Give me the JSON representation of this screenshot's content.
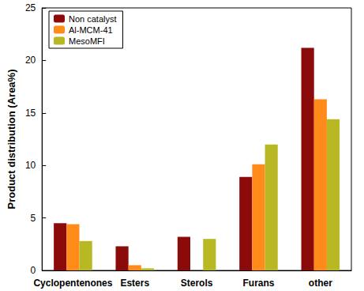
{
  "chart_data": {
    "type": "bar",
    "categories": [
      "Cyclopentenones",
      "Esters",
      "Sterols",
      "Furans",
      "other"
    ],
    "series": [
      {
        "name": "Non catalyst",
        "color": "#8b0a0a",
        "values": [
          4.5,
          2.3,
          3.2,
          8.9,
          21.2
        ]
      },
      {
        "name": "Al-MCM-41",
        "color": "#ff8c1a",
        "values": [
          4.4,
          0.5,
          0,
          10.1,
          16.3
        ]
      },
      {
        "name": "MesoMFI",
        "color": "#b8b824",
        "values": [
          2.8,
          0.2,
          3.0,
          12.0,
          14.4
        ]
      }
    ],
    "y_label": "Product distribution (Area%)",
    "ylim": [
      0,
      25
    ],
    "yticks": [
      0,
      5,
      10,
      15,
      20,
      25
    ],
    "grid": false,
    "legend": "upper left"
  }
}
